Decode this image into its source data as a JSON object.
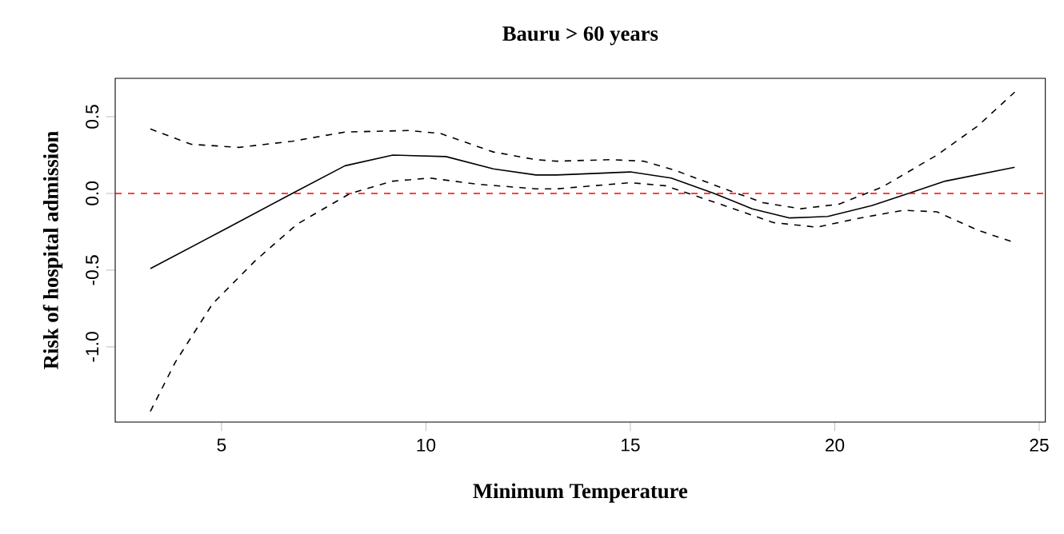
{
  "chart_data": {
    "type": "line",
    "title": "Bauru > 60 years",
    "xlabel": "Minimum Temperature",
    "ylabel": "Risk of hospital admission",
    "xlim": [
      2.4,
      25.15
    ],
    "ylim": [
      -1.49,
      0.75
    ],
    "xticks": [
      5,
      10,
      15,
      20,
      25
    ],
    "yticks": [
      {
        "value": -1.0,
        "label": "-1.0"
      },
      {
        "value": -0.5,
        "label": "-0.5"
      },
      {
        "value": 0.0,
        "label": "0.0"
      },
      {
        "value": 0.5,
        "label": "0.5"
      }
    ],
    "grid": false,
    "marker": "none",
    "ref_lines": [
      {
        "axis": "y",
        "value": 0,
        "label": null,
        "color": "#ff0000",
        "line_style": "dashed"
      }
    ],
    "series": [
      {
        "color": "#000000",
        "line_style": "solid",
        "x": [
          3.26,
          5.04,
          6.73,
          8.02,
          9.19,
          10.49,
          11.65,
          12.69,
          13.2,
          15,
          16,
          17.05,
          17.98,
          18.9,
          19.83,
          20.9,
          21.8,
          22.7,
          24.4
        ],
        "values": [
          -0.49,
          -0.24,
          0,
          0.18,
          0.25,
          0.24,
          0.16,
          0.12,
          0.12,
          0.14,
          0.1,
          0,
          -0.1,
          -0.16,
          -0.15,
          -0.08,
          0,
          0.08,
          0.17
        ]
      },
      {
        "color": "#000000",
        "line_style": "dashed",
        "x": [
          3.26,
          4.26,
          5.43,
          6.73,
          8.02,
          9.58,
          10.36,
          11.65,
          12.69,
          13.2,
          14.5,
          15.33,
          16.1,
          17.2,
          18.24,
          19.17,
          20.1,
          21.15,
          22.5,
          23.5,
          24.4
        ],
        "values": [
          0.42,
          0.32,
          0.3,
          0.34,
          0.4,
          0.41,
          0.39,
          0.27,
          0.22,
          0.21,
          0.22,
          0.21,
          0.15,
          0.04,
          -0.06,
          -0.1,
          -0.07,
          0.04,
          0.25,
          0.44,
          0.66
        ]
      },
      {
        "color": "#000000",
        "line_style": "dashed",
        "x": [
          3.26,
          3.87,
          4.78,
          5.82,
          6.85,
          8.15,
          9.19,
          10.1,
          11.26,
          12.69,
          13.2,
          15,
          15.86,
          17.2,
          18.5,
          19.56,
          20.62,
          21.68,
          22.5,
          23.5,
          24.4
        ],
        "values": [
          -1.42,
          -1.1,
          -0.72,
          -0.44,
          -0.2,
          0,
          0.08,
          0.1,
          0.06,
          0.03,
          0.03,
          0.07,
          0.05,
          -0.07,
          -0.19,
          -0.22,
          -0.16,
          -0.11,
          -0.12,
          -0.24,
          -0.32
        ]
      }
    ]
  }
}
